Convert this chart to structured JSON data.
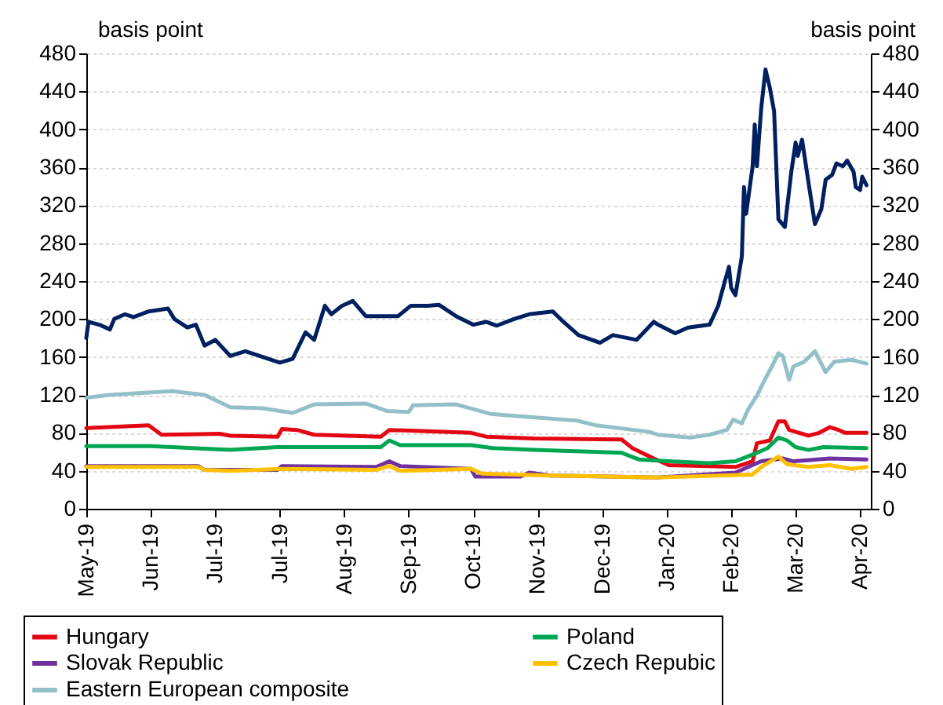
{
  "chart_data": {
    "type": "line",
    "ylabel": "basis point",
    "y2label": "basis point",
    "xlim": [
      "2019-05-02",
      "2020-05-01"
    ],
    "xticks": [
      {
        "value": "2019-05-02",
        "label": "May-19"
      },
      {
        "value": "2019-06-01",
        "label": "Jun-19"
      },
      {
        "value": "2019-07-01",
        "label": "Jul-19"
      },
      {
        "value": "2019-07-31",
        "label": "Jul-19"
      },
      {
        "value": "2019-08-30",
        "label": "Aug-19"
      },
      {
        "value": "2019-09-29",
        "label": "Sep-19"
      },
      {
        "value": "2019-10-29",
        "label": "Oct-19"
      },
      {
        "value": "2019-11-28",
        "label": "Nov-19"
      },
      {
        "value": "2019-12-28",
        "label": "Dec-19"
      },
      {
        "value": "2020-01-27",
        "label": "Jan-20"
      },
      {
        "value": "2020-02-26",
        "label": "Feb-20"
      },
      {
        "value": "2020-03-27",
        "label": "Mar-20"
      },
      {
        "value": "2020-04-26",
        "label": "Apr-20"
      }
    ],
    "ylim": [
      0,
      480
    ],
    "yticks": [
      0,
      40,
      80,
      120,
      160,
      200,
      240,
      280,
      320,
      360,
      400,
      440,
      480
    ],
    "y2lim": [
      0,
      480
    ],
    "y2ticks": [
      0,
      40,
      80,
      120,
      160,
      200,
      240,
      280,
      320,
      360,
      400,
      440,
      480
    ],
    "grid": "y",
    "legend": "bottom",
    "series": [
      {
        "name": "Hungary",
        "color": "#e30613",
        "x": [
          "2019-05-02",
          "2019-05-31",
          "2019-06-06",
          "2019-07-03",
          "2019-07-08",
          "2019-07-30",
          "2019-08-01",
          "2019-08-08",
          "2019-08-16",
          "2019-09-16",
          "2019-09-20",
          "2019-10-28",
          "2019-11-04",
          "2019-11-26",
          "2020-01-06",
          "2020-01-11",
          "2020-01-21",
          "2020-01-28",
          "2020-02-16",
          "2020-02-28",
          "2020-03-07",
          "2020-03-09",
          "2020-03-15",
          "2020-03-19",
          "2020-03-22",
          "2020-03-24",
          "2020-04-02",
          "2020-04-07",
          "2020-04-12",
          "2020-04-16",
          "2020-04-19",
          "2020-04-29"
        ],
        "values": [
          85,
          88,
          78,
          79,
          77,
          76,
          84,
          83,
          78,
          76,
          83,
          80,
          76,
          74,
          73,
          64,
          53,
          46,
          45,
          44,
          50,
          69,
          72,
          92,
          92,
          83,
          77,
          80,
          86,
          83,
          80,
          80
        ]
      },
      {
        "name": "Poland",
        "color": "#00a651",
        "x": [
          "2019-05-02",
          "2019-06-01",
          "2019-07-08",
          "2019-07-30",
          "2019-09-16",
          "2019-09-20",
          "2019-09-25",
          "2019-10-28",
          "2019-11-07",
          "2019-11-26",
          "2020-01-06",
          "2020-01-14",
          "2020-01-28",
          "2020-02-16",
          "2020-02-28",
          "2020-03-08",
          "2020-03-14",
          "2020-03-19",
          "2020-03-23",
          "2020-03-27",
          "2020-04-02",
          "2020-04-09",
          "2020-04-29"
        ],
        "values": [
          66,
          66,
          62,
          65,
          65,
          72,
          67,
          67,
          64,
          62,
          59,
          52,
          50,
          48,
          50,
          58,
          64,
          75,
          72,
          65,
          62,
          65,
          64
        ]
      },
      {
        "name": "Slovak Republic",
        "color": "#7030a0",
        "x": [
          "2019-05-02",
          "2019-06-23",
          "2019-06-26",
          "2019-07-30",
          "2019-08-01",
          "2019-09-14",
          "2019-09-20",
          "2019-09-25",
          "2019-10-28",
          "2019-10-30",
          "2019-11-20",
          "2019-11-24",
          "2019-12-04",
          "2020-01-23",
          "2020-02-13",
          "2020-02-28",
          "2020-03-11",
          "2020-03-21",
          "2020-03-26",
          "2020-04-12",
          "2020-04-29"
        ],
        "values": [
          45,
          45,
          41,
          41,
          45,
          44,
          50,
          45,
          42,
          34,
          34,
          38,
          35,
          33,
          36,
          38,
          50,
          53,
          50,
          53,
          52
        ]
      },
      {
        "name": "Czech Repubic",
        "color": "#ffc000",
        "x": [
          "2019-05-02",
          "2019-06-23",
          "2019-06-26",
          "2019-07-08",
          "2019-08-01",
          "2019-09-14",
          "2019-09-20",
          "2019-09-25",
          "2019-10-28",
          "2019-11-02",
          "2019-12-04",
          "2020-01-23",
          "2020-03-07",
          "2020-03-11",
          "2020-03-19",
          "2020-03-23",
          "2020-04-02",
          "2020-04-12",
          "2020-04-22",
          "2020-04-29"
        ],
        "values": [
          44,
          44,
          41,
          40,
          42,
          41,
          45,
          40,
          42,
          37,
          35,
          33,
          36,
          44,
          55,
          47,
          44,
          46,
          42,
          44
        ]
      },
      {
        "name": "Eastern European composite",
        "color": "#93c0c8",
        "x": [
          "2019-05-02",
          "2019-05-13",
          "2019-05-28",
          "2019-06-11",
          "2019-06-26",
          "2019-07-08",
          "2019-07-23",
          "2019-08-06",
          "2019-08-16",
          "2019-09-09",
          "2019-09-19",
          "2019-09-29",
          "2019-10-01",
          "2019-10-21",
          "2019-11-06",
          "2019-11-28",
          "2019-12-16",
          "2019-12-25",
          "2020-01-19",
          "2020-01-23",
          "2020-02-07",
          "2020-02-16",
          "2020-02-24",
          "2020-02-27",
          "2020-03-02",
          "2020-03-05",
          "2020-03-09",
          "2020-03-12",
          "2020-03-16",
          "2020-03-19",
          "2020-03-21",
          "2020-03-24",
          "2020-03-26",
          "2020-03-31",
          "2020-04-05",
          "2020-04-10",
          "2020-04-14",
          "2020-04-22",
          "2020-04-29"
        ],
        "values": [
          117,
          120,
          122,
          124,
          120,
          107,
          106,
          101,
          110,
          111,
          103,
          102,
          109,
          110,
          100,
          96,
          93,
          88,
          81,
          78,
          75,
          78,
          83,
          94,
          90,
          105,
          119,
          133,
          150,
          164,
          161,
          136,
          150,
          155,
          166,
          144,
          155,
          157,
          153
        ]
      },
      {
        "color": "#002060",
        "x": [
          "2019-05-02",
          "2019-05-03",
          "2019-05-08",
          "2019-05-13",
          "2019-05-15",
          "2019-05-20",
          "2019-05-24",
          "2019-05-31",
          "2019-06-09",
          "2019-06-12",
          "2019-06-18",
          "2019-06-22",
          "2019-06-26",
          "2019-07-01",
          "2019-07-08",
          "2019-07-15",
          "2019-07-23",
          "2019-07-31",
          "2019-08-06",
          "2019-08-12",
          "2019-08-16",
          "2019-08-21",
          "2019-08-24",
          "2019-08-29",
          "2019-09-03",
          "2019-09-09",
          "2019-09-16",
          "2019-09-24",
          "2019-09-30",
          "2019-10-08",
          "2019-10-13",
          "2019-10-21",
          "2019-10-29",
          "2019-11-04",
          "2019-11-09",
          "2019-11-17",
          "2019-11-24",
          "2019-12-05",
          "2019-12-10",
          "2019-12-17",
          "2019-12-27",
          "2020-01-02",
          "2020-01-13",
          "2020-01-21",
          "2020-01-23",
          "2020-01-31",
          "2020-02-06",
          "2020-02-16",
          "2020-02-20",
          "2020-02-23",
          "2020-02-25",
          "2020-02-26",
          "2020-02-28",
          "2020-03-02",
          "2020-03-03",
          "2020-03-04",
          "2020-03-07",
          "2020-03-08",
          "2020-03-09",
          "2020-03-11",
          "2020-03-13",
          "2020-03-15",
          "2020-03-17",
          "2020-03-19",
          "2020-03-22",
          "2020-03-25",
          "2020-03-27",
          "2020-03-28",
          "2020-03-30",
          "2020-04-02",
          "2020-04-05",
          "2020-04-08",
          "2020-04-10",
          "2020-04-13",
          "2020-04-15",
          "2020-04-18",
          "2020-04-20",
          "2020-04-23",
          "2020-04-24",
          "2020-04-26",
          "2020-04-27",
          "2020-04-29"
        ],
        "values": [
          180,
          197,
          194,
          189,
          200,
          205,
          202,
          208,
          211,
          200,
          191,
          194,
          172,
          178,
          161,
          166,
          160,
          154,
          158,
          186,
          178,
          214,
          205,
          214,
          219,
          203,
          203,
          203,
          214,
          214,
          215,
          203,
          194,
          197,
          193,
          200,
          205,
          208,
          197,
          183,
          175,
          183,
          178,
          197,
          194,
          185,
          191,
          194,
          214,
          239,
          255,
          233,
          225,
          266,
          339,
          311,
          361,
          405,
          361,
          422,
          463,
          444,
          419,
          305,
          297,
          355,
          386,
          372,
          389,
          344,
          300,
          316,
          347,
          352,
          364,
          361,
          367,
          355,
          339,
          336,
          350,
          341
        ]
      }
    ]
  }
}
